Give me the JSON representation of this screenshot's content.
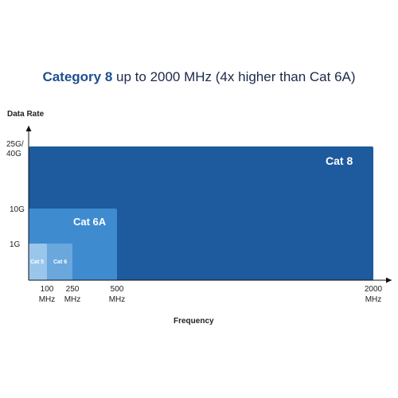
{
  "chart_data": {
    "type": "area",
    "title_strong": "Category 8",
    "title_rest": " up to 2000 MHz (4x higher than Cat 6A)",
    "ylabel": "Data Rate",
    "xlabel": "Frequency",
    "x_unit": "MHz",
    "y_unit": "Gbps",
    "x_ticks": [
      {
        "value": 100,
        "line1": "100",
        "line2": "MHz"
      },
      {
        "value": 250,
        "line1": "250",
        "line2": "MHz"
      },
      {
        "value": 500,
        "line1": "500",
        "line2": "MHz"
      },
      {
        "value": 2000,
        "line1": "2000",
        "line2": "MHz"
      }
    ],
    "y_ticks": [
      {
        "value": 1,
        "line1": "1G",
        "line2": ""
      },
      {
        "value": 10,
        "line1": "10G",
        "line2": ""
      },
      {
        "value": 40,
        "line1": "25G/",
        "line2": "40G"
      }
    ],
    "series": [
      {
        "name": "Cat 8",
        "max_frequency": 2000,
        "max_rate": 40,
        "color": "#1e5a9e"
      },
      {
        "name": "Cat 6A",
        "max_frequency": 500,
        "max_rate": 10,
        "color": "#3f8bd0"
      },
      {
        "name": "Cat 6",
        "max_frequency": 250,
        "max_rate": 1,
        "color": "#6aa7dd"
      },
      {
        "name": "Cat 5",
        "max_frequency": 100,
        "max_rate": 1,
        "color": "#9ac6ec"
      }
    ]
  }
}
